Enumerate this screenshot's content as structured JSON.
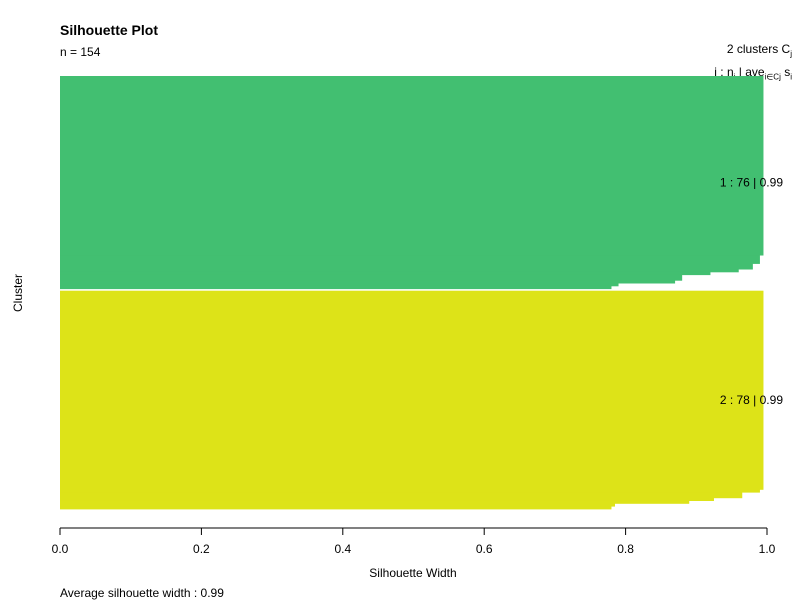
{
  "header": {
    "title": "Silhouette Plot",
    "subtitle": "n = 154"
  },
  "legend_header": {
    "line1": "2  clusters  C",
    "line1_sub": "j",
    "line2_a": "j :  n",
    "line2_a_sub": "j",
    "line2_b": " | ave",
    "line2_b_sub": "i∈Cj",
    "line2_c": "  s",
    "line2_c_sub": "i"
  },
  "footer": {
    "text": "Average silhouette width :  0.99"
  },
  "chart_data": {
    "type": "bar",
    "orientation": "horizontal",
    "title": "Silhouette Plot",
    "subtitle": "n = 154",
    "xlabel": "Silhouette Width",
    "ylabel": "Cluster",
    "xlim": [
      0,
      1
    ],
    "x_ticks": [
      "0.0",
      "0.2",
      "0.4",
      "0.6",
      "0.8",
      "1.0"
    ],
    "grid": false,
    "clusters": [
      {
        "id": 1,
        "color": "#42BF71",
        "label": "1 :  76  |  0.99",
        "n": 76,
        "ave_width": 0.99,
        "widths_summary": [
          {
            "count": 64,
            "value": 0.995
          },
          {
            "count": 3,
            "value": 0.99
          },
          {
            "count": 2,
            "value": 0.98
          },
          {
            "count": 1,
            "value": 0.96
          },
          {
            "count": 1,
            "value": 0.92
          },
          {
            "count": 2,
            "value": 0.88
          },
          {
            "count": 1,
            "value": 0.87
          },
          {
            "count": 1,
            "value": 0.79
          },
          {
            "count": 1,
            "value": 0.78
          }
        ]
      },
      {
        "id": 2,
        "color": "#DDE318",
        "label": "2 :  78  |  0.99",
        "n": 78,
        "ave_width": 0.99,
        "widths_summary": [
          {
            "count": 71,
            "value": 0.995
          },
          {
            "count": 1,
            "value": 0.99
          },
          {
            "count": 2,
            "value": 0.965
          },
          {
            "count": 1,
            "value": 0.925
          },
          {
            "count": 1,
            "value": 0.89
          },
          {
            "count": 1,
            "value": 0.785
          },
          {
            "count": 1,
            "value": 0.78
          }
        ]
      }
    ],
    "average_silhouette_width": 0.99
  }
}
